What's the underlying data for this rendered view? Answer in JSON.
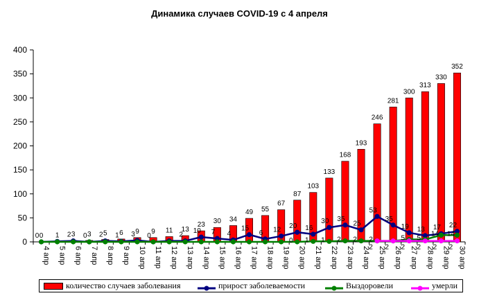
{
  "chart_data": {
    "type": "bar",
    "title": "Динамика случаев COVID-19 с 4 апреля",
    "categories": [
      "4 апр",
      "5 апр",
      "6 апр",
      "7 апр",
      "8 апр",
      "9 апр",
      "10 апр",
      "11 апр",
      "12 апр",
      "13 апр",
      "14 апр",
      "15 апр",
      "16 апр",
      "17 апр",
      "18 апр",
      "19 апр",
      "20 апр",
      "21 апр",
      "22 апр",
      "23 апр",
      "24 апр",
      "25 апр",
      "26 апр",
      "27 апр",
      "28 апр",
      "29 апр",
      "30 апр"
    ],
    "ylim": [
      0,
      400
    ],
    "yticks": [
      0,
      50,
      100,
      150,
      200,
      250,
      300,
      350,
      400
    ],
    "grid": false,
    "legend_position": "bottom",
    "series": [
      {
        "name": "количество случаев заболевания",
        "kind": "bar",
        "color": "#ff0000",
        "values": [
          0,
          1,
          3,
          3,
          5,
          6,
          9,
          9,
          11,
          13,
          23,
          30,
          34,
          49,
          55,
          67,
          87,
          103,
          133,
          168,
          193,
          246,
          281,
          300,
          313,
          330,
          352
        ],
        "labels": [
          "0",
          "1",
          "3",
          "3",
          "5",
          "6",
          "9",
          "9",
          "11",
          "13",
          "23",
          "30",
          "34",
          "49",
          "55",
          "67",
          "87",
          "103",
          "133",
          "168",
          "193",
          "246",
          "281",
          "300",
          "313",
          "330",
          "352"
        ]
      },
      {
        "name": "прирост заболеваемости",
        "kind": "line",
        "color": "#000080",
        "values": [
          0,
          1,
          2,
          0,
          2,
          1,
          3,
          0,
          2,
          2,
          10,
          7,
          4,
          15,
          6,
          12,
          20,
          16,
          30,
          35,
          25,
          53,
          35,
          19,
          13,
          17,
          22
        ],
        "labels": [
          "0",
          "",
          "2",
          "0",
          "2",
          "1",
          "3",
          "0",
          "",
          "2",
          "10",
          "7",
          "4",
          "15",
          "6",
          "12",
          "20",
          "16",
          "30",
          "35",
          "25",
          "53",
          "35",
          "19",
          "13",
          "17",
          "22"
        ]
      },
      {
        "name": "Выздоровели",
        "kind": "line",
        "color": "#008000",
        "values": [
          0,
          0,
          0,
          0,
          0,
          0,
          0,
          0,
          0,
          0,
          0,
          0,
          0,
          0,
          0,
          0,
          0,
          1,
          1,
          2,
          2,
          2,
          2,
          5,
          5,
          14,
          14
        ],
        "labels": [
          "",
          "",
          "",
          "",
          "",
          "",
          "",
          "",
          "",
          "",
          "",
          "",
          "",
          "",
          "",
          "",
          "0",
          "1",
          "1",
          "2",
          "2",
          "2",
          "",
          "5",
          "5",
          "14",
          "14"
        ]
      },
      {
        "name": "умерли",
        "kind": "line",
        "color": "#ff00ff",
        "values": [
          null,
          null,
          null,
          null,
          null,
          null,
          null,
          null,
          null,
          null,
          null,
          null,
          null,
          null,
          null,
          null,
          null,
          null,
          null,
          null,
          null,
          2,
          2,
          2,
          2,
          2,
          2
        ],
        "labels": [
          "",
          "",
          "",
          "",
          "",
          "",
          "",
          "",
          "",
          "",
          "",
          "",
          "",
          "",
          "",
          "",
          "",
          "",
          "",
          "",
          "",
          "2",
          "2",
          "2",
          "2",
          "2",
          "2"
        ]
      }
    ]
  }
}
